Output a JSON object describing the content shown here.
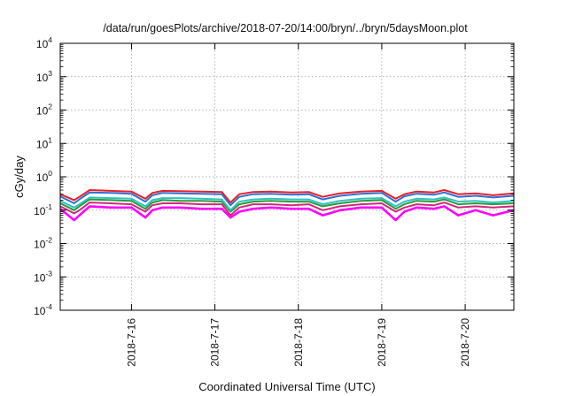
{
  "chart_data": {
    "type": "line",
    "title": "/data/run/goesPlots/archive/2018-07-20/14:00/bryn/../bryn/5daysMoon.plot",
    "xlabel": "Coordinated Universal Time (UTC)",
    "ylabel": "cGy/day",
    "yscale": "log",
    "ylim": [
      0.0001,
      10000
    ],
    "xlim": [
      "2018-07-15T03:30",
      "2018-07-20T14:00"
    ],
    "ytick_exponents": [
      -4,
      -3,
      -2,
      -1,
      0,
      1,
      2,
      3,
      4
    ],
    "ytick_base": "10",
    "xticks": [
      {
        "date": "2018-07-16T00:00",
        "label": "2018-7-16"
      },
      {
        "date": "2018-07-17T00:00",
        "label": "2018-7-17"
      },
      {
        "date": "2018-07-18T00:00",
        "label": "2018-7-18"
      },
      {
        "date": "2018-07-19T00:00",
        "label": "2018-7-19"
      },
      {
        "date": "2018-07-20T00:00",
        "label": "2018-7-20"
      }
    ],
    "grid": true,
    "x": [
      "2018-07-15T03:30",
      "2018-07-15T07:30",
      "2018-07-15T09:00",
      "2018-07-15T12:00",
      "2018-07-15T18:00",
      "2018-07-16T00:00",
      "2018-07-16T04:00",
      "2018-07-16T06:00",
      "2018-07-16T09:00",
      "2018-07-16T14:00",
      "2018-07-16T20:00",
      "2018-07-17T02:00",
      "2018-07-17T04:30",
      "2018-07-17T07:00",
      "2018-07-17T11:00",
      "2018-07-17T16:00",
      "2018-07-17T22:00",
      "2018-07-18T03:00",
      "2018-07-18T07:00",
      "2018-07-18T12:00",
      "2018-07-18T18:00",
      "2018-07-19T00:00",
      "2018-07-19T04:00",
      "2018-07-19T06:30",
      "2018-07-19T10:00",
      "2018-07-19T15:00",
      "2018-07-19T18:00",
      "2018-07-19T22:00",
      "2018-07-20T03:00",
      "2018-07-20T08:00",
      "2018-07-20T14:00"
    ],
    "series": [
      {
        "color": "#e8202a",
        "values": [
          0.3,
          0.2,
          0.25,
          0.4,
          0.38,
          0.36,
          0.22,
          0.33,
          0.38,
          0.37,
          0.36,
          0.35,
          0.17,
          0.3,
          0.35,
          0.36,
          0.34,
          0.35,
          0.25,
          0.32,
          0.36,
          0.38,
          0.22,
          0.3,
          0.36,
          0.34,
          0.4,
          0.3,
          0.32,
          0.28,
          0.32
        ]
      },
      {
        "color": "#2f6fd6",
        "values": [
          0.26,
          0.16,
          0.21,
          0.34,
          0.33,
          0.31,
          0.18,
          0.28,
          0.33,
          0.32,
          0.31,
          0.3,
          0.14,
          0.25,
          0.3,
          0.31,
          0.29,
          0.3,
          0.21,
          0.27,
          0.31,
          0.33,
          0.18,
          0.26,
          0.31,
          0.29,
          0.34,
          0.25,
          0.27,
          0.24,
          0.27
        ]
      },
      {
        "color": "#2bc4c4",
        "values": [
          0.19,
          0.12,
          0.15,
          0.24,
          0.23,
          0.22,
          0.13,
          0.2,
          0.23,
          0.23,
          0.22,
          0.21,
          0.1,
          0.18,
          0.21,
          0.22,
          0.21,
          0.21,
          0.15,
          0.19,
          0.22,
          0.23,
          0.13,
          0.18,
          0.22,
          0.21,
          0.24,
          0.18,
          0.19,
          0.17,
          0.19
        ]
      },
      {
        "color": "#2c9a3a",
        "values": [
          0.16,
          0.1,
          0.13,
          0.21,
          0.2,
          0.19,
          0.11,
          0.17,
          0.2,
          0.19,
          0.19,
          0.18,
          0.09,
          0.15,
          0.18,
          0.19,
          0.18,
          0.18,
          0.13,
          0.16,
          0.19,
          0.2,
          0.11,
          0.15,
          0.19,
          0.18,
          0.21,
          0.15,
          0.16,
          0.15,
          0.16
        ]
      },
      {
        "color": "#d4267e",
        "values": [
          0.13,
          0.08,
          0.1,
          0.17,
          0.16,
          0.15,
          0.09,
          0.14,
          0.16,
          0.16,
          0.15,
          0.15,
          0.07,
          0.12,
          0.15,
          0.15,
          0.14,
          0.15,
          0.1,
          0.13,
          0.15,
          0.16,
          0.09,
          0.12,
          0.15,
          0.14,
          0.17,
          0.12,
          0.13,
          0.12,
          0.13
        ]
      },
      {
        "color": "#ff00ff",
        "values": [
          0.11,
          0.05,
          0.07,
          0.13,
          0.12,
          0.12,
          0.06,
          0.1,
          0.12,
          0.12,
          0.11,
          0.11,
          0.06,
          0.09,
          0.11,
          0.12,
          0.11,
          0.11,
          0.07,
          0.1,
          0.12,
          0.12,
          0.05,
          0.09,
          0.12,
          0.11,
          0.13,
          0.07,
          0.1,
          0.07,
          0.1
        ]
      }
    ]
  }
}
